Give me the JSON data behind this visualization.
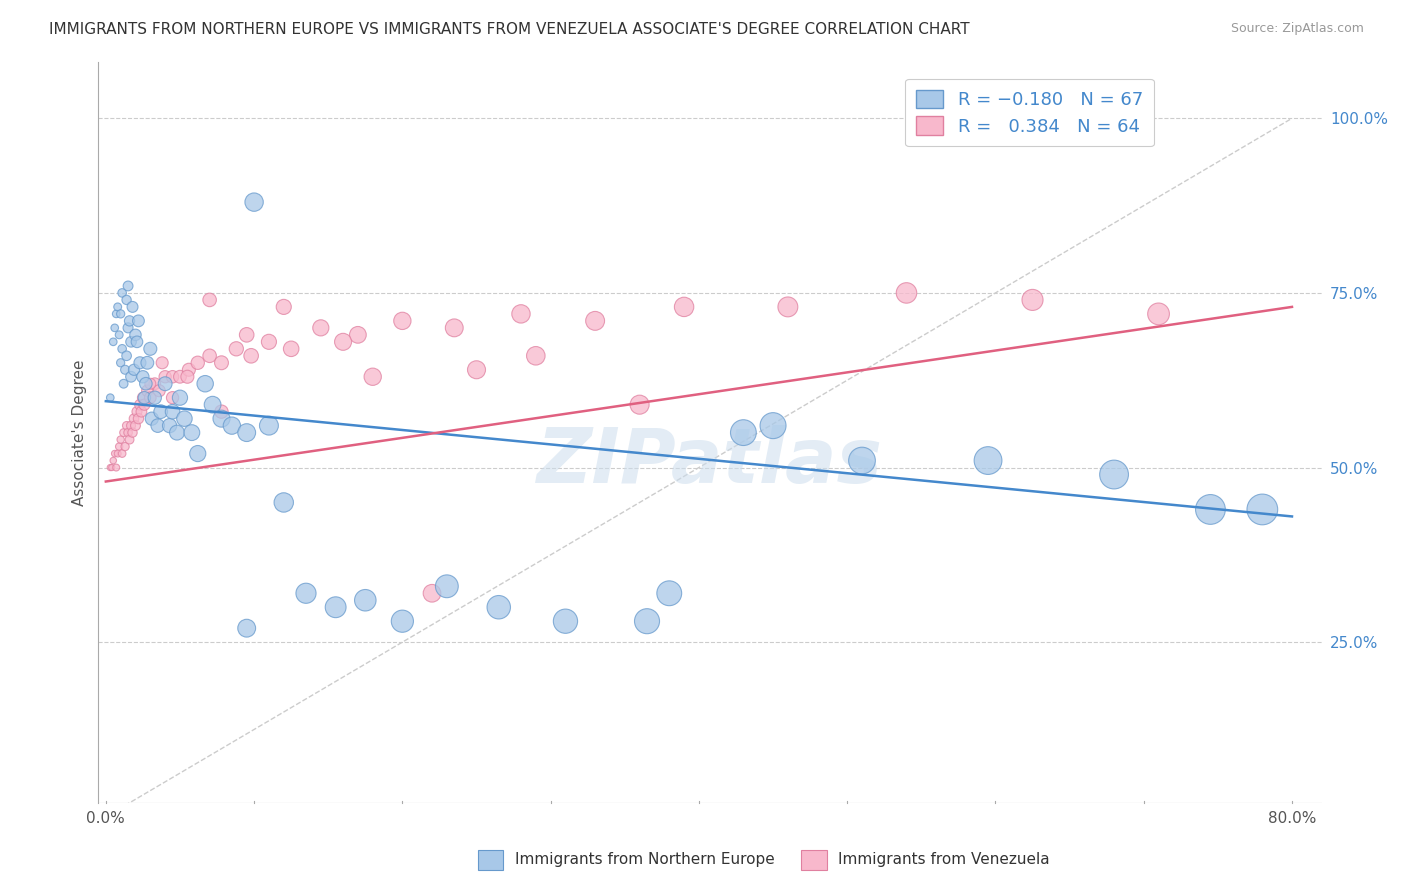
{
  "title": "IMMIGRANTS FROM NORTHERN EUROPE VS IMMIGRANTS FROM VENEZUELA ASSOCIATE'S DEGREE CORRELATION CHART",
  "source": "Source: ZipAtlas.com",
  "ylabel": "Associate's Degree",
  "y_tick_labels": [
    "25.0%",
    "50.0%",
    "75.0%",
    "100.0%"
  ],
  "y_tick_values": [
    0.25,
    0.5,
    0.75,
    1.0
  ],
  "x_range": [
    -0.005,
    0.82
  ],
  "y_range": [
    0.02,
    1.08
  ],
  "legend1_color": "#a8c8e8",
  "legend2_color": "#f8b8cc",
  "watermark": "ZIPatlas",
  "blue_line_color": "#4488cc",
  "pink_line_color": "#e06080",
  "blue_dot_color": "#a8c8e8",
  "pink_dot_color": "#f8b8cc",
  "blue_dot_edge": "#6699cc",
  "pink_dot_edge": "#e080a0",
  "grid_color": "#cccccc",
  "background_color": "#ffffff",
  "blue_line_x0": 0.0,
  "blue_line_y0": 0.595,
  "blue_line_x1": 0.8,
  "blue_line_y1": 0.43,
  "pink_line_x0": 0.0,
  "pink_line_y0": 0.48,
  "pink_line_x1": 0.8,
  "pink_line_y1": 0.73,
  "diag_line_x0": 0.0,
  "diag_line_y0": 0.0,
  "diag_line_x1": 0.8,
  "diag_line_y1": 1.0,
  "blue_x": [
    0.003,
    0.005,
    0.006,
    0.007,
    0.008,
    0.009,
    0.01,
    0.01,
    0.011,
    0.011,
    0.012,
    0.013,
    0.014,
    0.014,
    0.015,
    0.015,
    0.016,
    0.017,
    0.017,
    0.018,
    0.019,
    0.02,
    0.021,
    0.022,
    0.023,
    0.025,
    0.026,
    0.027,
    0.028,
    0.03,
    0.031,
    0.033,
    0.035,
    0.037,
    0.04,
    0.043,
    0.045,
    0.048,
    0.05,
    0.053,
    0.058,
    0.062,
    0.067,
    0.072,
    0.078,
    0.085,
    0.095,
    0.1,
    0.11,
    0.12,
    0.135,
    0.155,
    0.175,
    0.2,
    0.23,
    0.265,
    0.31,
    0.365,
    0.43,
    0.51,
    0.595,
    0.68,
    0.745,
    0.78,
    0.38,
    0.45,
    0.095
  ],
  "blue_y": [
    0.6,
    0.68,
    0.7,
    0.72,
    0.73,
    0.69,
    0.72,
    0.65,
    0.67,
    0.75,
    0.62,
    0.64,
    0.74,
    0.66,
    0.76,
    0.7,
    0.71,
    0.68,
    0.63,
    0.73,
    0.64,
    0.69,
    0.68,
    0.71,
    0.65,
    0.63,
    0.6,
    0.62,
    0.65,
    0.67,
    0.57,
    0.6,
    0.56,
    0.58,
    0.62,
    0.56,
    0.58,
    0.55,
    0.6,
    0.57,
    0.55,
    0.52,
    0.62,
    0.59,
    0.57,
    0.56,
    0.55,
    0.88,
    0.56,
    0.45,
    0.32,
    0.3,
    0.31,
    0.28,
    0.33,
    0.3,
    0.28,
    0.28,
    0.55,
    0.51,
    0.51,
    0.49,
    0.44,
    0.44,
    0.32,
    0.56,
    0.27
  ],
  "blue_s": [
    30,
    30,
    30,
    30,
    32,
    32,
    35,
    35,
    38,
    38,
    40,
    42,
    45,
    48,
    50,
    52,
    55,
    58,
    60,
    62,
    65,
    68,
    70,
    72,
    75,
    78,
    80,
    82,
    85,
    88,
    90,
    92,
    95,
    98,
    100,
    105,
    110,
    115,
    120,
    125,
    130,
    135,
    140,
    145,
    150,
    155,
    165,
    175,
    185,
    195,
    210,
    225,
    240,
    255,
    270,
    285,
    305,
    325,
    345,
    370,
    400,
    430,
    460,
    490,
    320,
    350,
    165
  ],
  "pink_x": [
    0.003,
    0.004,
    0.005,
    0.006,
    0.007,
    0.008,
    0.009,
    0.01,
    0.011,
    0.012,
    0.013,
    0.014,
    0.015,
    0.016,
    0.017,
    0.018,
    0.019,
    0.02,
    0.021,
    0.022,
    0.023,
    0.024,
    0.025,
    0.026,
    0.028,
    0.03,
    0.033,
    0.036,
    0.04,
    0.045,
    0.05,
    0.056,
    0.062,
    0.07,
    0.078,
    0.088,
    0.098,
    0.11,
    0.125,
    0.145,
    0.17,
    0.2,
    0.235,
    0.28,
    0.33,
    0.39,
    0.46,
    0.54,
    0.625,
    0.71,
    0.07,
    0.055,
    0.038,
    0.095,
    0.16,
    0.25,
    0.045,
    0.03,
    0.078,
    0.18,
    0.12,
    0.29,
    0.36,
    0.22
  ],
  "pink_y": [
    0.5,
    0.5,
    0.51,
    0.52,
    0.5,
    0.52,
    0.53,
    0.54,
    0.52,
    0.55,
    0.53,
    0.56,
    0.55,
    0.54,
    0.56,
    0.55,
    0.57,
    0.56,
    0.58,
    0.57,
    0.59,
    0.58,
    0.6,
    0.59,
    0.61,
    0.6,
    0.62,
    0.61,
    0.63,
    0.63,
    0.63,
    0.64,
    0.65,
    0.66,
    0.65,
    0.67,
    0.66,
    0.68,
    0.67,
    0.7,
    0.69,
    0.71,
    0.7,
    0.72,
    0.71,
    0.73,
    0.73,
    0.75,
    0.74,
    0.72,
    0.74,
    0.63,
    0.65,
    0.69,
    0.68,
    0.64,
    0.6,
    0.62,
    0.58,
    0.63,
    0.73,
    0.66,
    0.59,
    0.32
  ],
  "pink_s": [
    20,
    20,
    22,
    22,
    25,
    25,
    28,
    28,
    30,
    32,
    35,
    35,
    38,
    40,
    42,
    45,
    48,
    50,
    52,
    55,
    58,
    60,
    62,
    65,
    68,
    70,
    72,
    75,
    78,
    80,
    85,
    88,
    92,
    95,
    100,
    105,
    110,
    118,
    125,
    135,
    145,
    155,
    165,
    175,
    185,
    195,
    205,
    218,
    230,
    245,
    95,
    88,
    75,
    110,
    150,
    168,
    78,
    62,
    92,
    155,
    118,
    178,
    188,
    162
  ]
}
